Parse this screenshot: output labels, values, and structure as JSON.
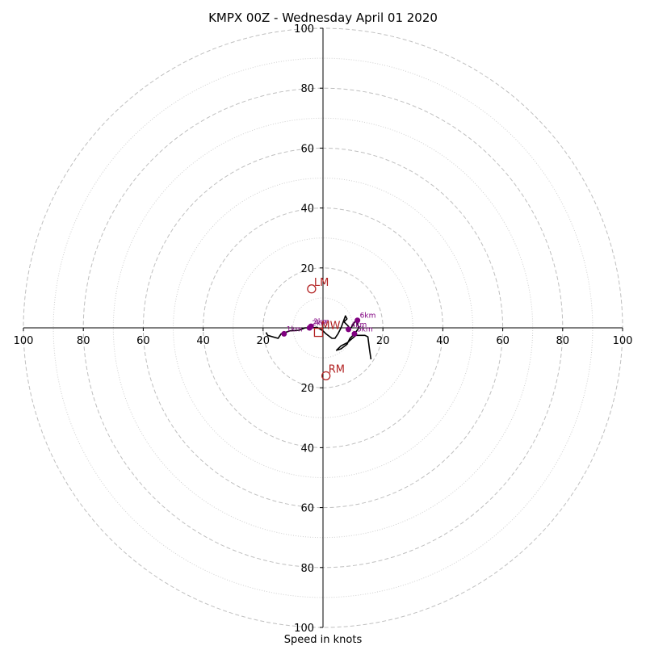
{
  "chart_data": {
    "type": "hodograph",
    "title": "KMPX 00Z - Wednesday April 01 2020",
    "xlabel": "Speed in knots",
    "range": [
      -100,
      100
    ],
    "rings_major": [
      20,
      40,
      60,
      80,
      100
    ],
    "rings_minor": [
      10,
      30,
      50,
      70,
      90
    ],
    "ticks": {
      "x": [
        {
          "value": -100,
          "label": "100"
        },
        {
          "value": -80,
          "label": "80"
        },
        {
          "value": -60,
          "label": "60"
        },
        {
          "value": -40,
          "label": "40"
        },
        {
          "value": -20,
          "label": "20"
        },
        {
          "value": 20,
          "label": "20"
        },
        {
          "value": 40,
          "label": "40"
        },
        {
          "value": 60,
          "label": "60"
        },
        {
          "value": 80,
          "label": "80"
        },
        {
          "value": 100,
          "label": "100"
        }
      ],
      "y": [
        {
          "value": 100,
          "label": "100"
        },
        {
          "value": 80,
          "label": "80"
        },
        {
          "value": 60,
          "label": "60"
        },
        {
          "value": 40,
          "label": "40"
        },
        {
          "value": 20,
          "label": "20"
        },
        {
          "value": -20,
          "label": "20"
        },
        {
          "value": -40,
          "label": "40"
        },
        {
          "value": -60,
          "label": "60"
        },
        {
          "value": -80,
          "label": "80"
        },
        {
          "value": -100,
          "label": "100"
        }
      ]
    },
    "hodograph_line": [
      [
        -19,
        -1.5
      ],
      [
        -18.5,
        -2.5
      ],
      [
        -15,
        -3.5
      ],
      [
        -14,
        -2
      ],
      [
        -11,
        -1
      ],
      [
        -8,
        -0.8
      ],
      [
        -6,
        0
      ],
      [
        -3.5,
        0
      ],
      [
        -2,
        0.2
      ],
      [
        0,
        -1
      ],
      [
        1,
        -2
      ],
      [
        3,
        -3.5
      ],
      [
        4,
        -3.5
      ],
      [
        5,
        -2
      ],
      [
        6,
        0
      ],
      [
        7.5,
        4
      ],
      [
        8,
        3
      ],
      [
        7,
        2
      ],
      [
        8.5,
        0.5
      ],
      [
        9,
        -0.5
      ],
      [
        10,
        1
      ],
      [
        11,
        2.5
      ],
      [
        12,
        0
      ],
      [
        10.5,
        -2
      ],
      [
        9,
        -3.5
      ],
      [
        8,
        -5.5
      ],
      [
        6,
        -7
      ],
      [
        4.5,
        -7.5
      ],
      [
        6,
        -6
      ],
      [
        8,
        -5
      ],
      [
        11,
        -2.5
      ],
      [
        14,
        -2.5
      ],
      [
        15,
        -3
      ],
      [
        15.5,
        -7
      ],
      [
        16,
        -10.5
      ]
    ],
    "height_markers": [
      {
        "label": "1km",
        "u": -13,
        "v": -2
      },
      {
        "label": "2km",
        "u": -4.5,
        "v": 0
      },
      {
        "label": "3km",
        "u": -4,
        "v": 0.5
      },
      {
        "label": "4km",
        "u": 8.5,
        "v": -0.5
      },
      {
        "label": "5km",
        "u": 10.5,
        "v": -2
      },
      {
        "label": "6km",
        "u": 11.5,
        "v": 2.5
      }
    ],
    "storm_motions": [
      {
        "label": "LM",
        "u": -3.8,
        "v": 13,
        "marker": "circle"
      },
      {
        "label": "RM",
        "u": 1,
        "v": -16,
        "marker": "circle"
      },
      {
        "label": "MW",
        "u": -1.5,
        "v": -1.5,
        "marker": "square"
      }
    ],
    "colors": {
      "line": "#000000",
      "height_marker": "#800080",
      "storm_motion": "#b22222",
      "grid": "#bfbfbf",
      "axis": "#000000"
    }
  }
}
